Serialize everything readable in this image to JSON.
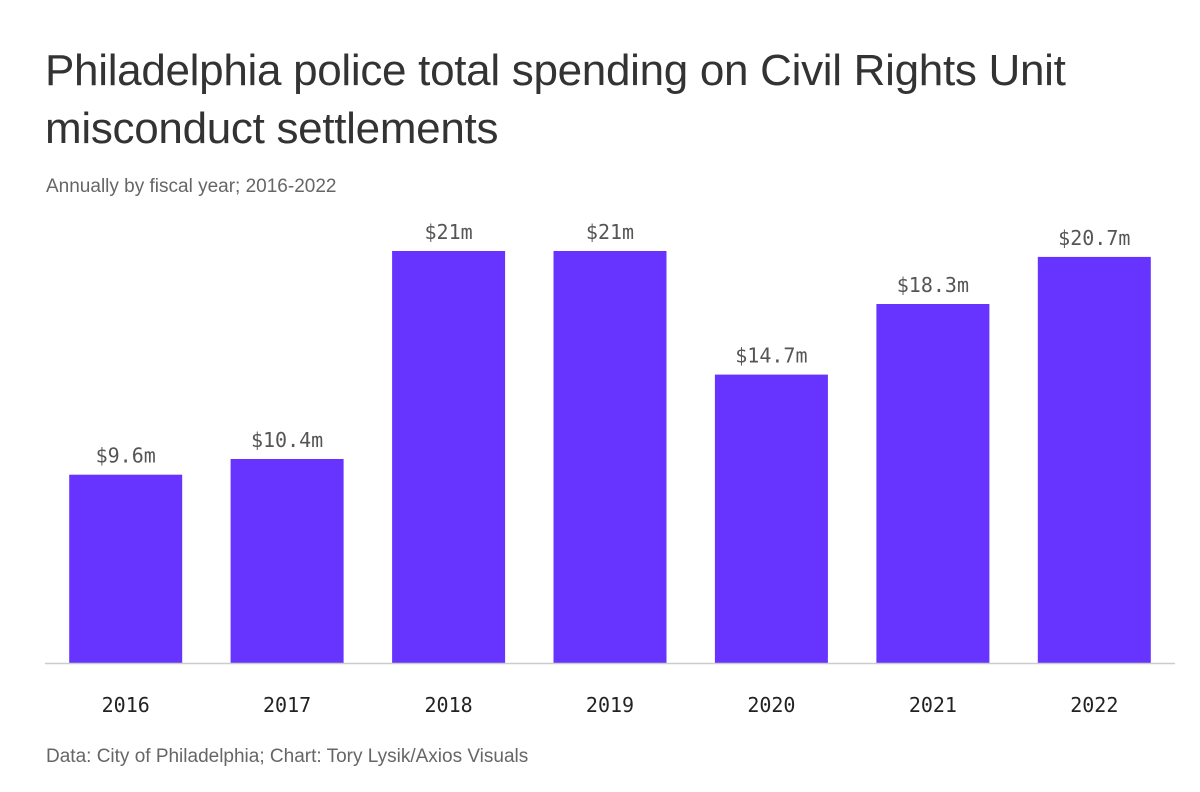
{
  "chart_data": {
    "type": "bar",
    "title": "Philadelphia police total spending on Civil Rights Unit misconduct settlements",
    "subtitle": "Annually by fiscal year; 2016-2022",
    "categories": [
      "2016",
      "2017",
      "2018",
      "2019",
      "2020",
      "2021",
      "2022"
    ],
    "values": [
      9.6,
      10.4,
      21,
      21,
      14.7,
      18.3,
      20.7
    ],
    "value_labels": [
      "$9.6m",
      "$10.4m",
      "$21m",
      "$21m",
      "$14.7m",
      "$18.3m",
      "$20.7m"
    ],
    "xlabel": "",
    "ylabel": "",
    "ylim": [
      0,
      21
    ],
    "grid": false,
    "bar_color": "#6633ff",
    "axis_color": "#cccccc",
    "source": "Data: City of Philadelphia; Chart: Tory Lysik/Axios Visuals"
  }
}
